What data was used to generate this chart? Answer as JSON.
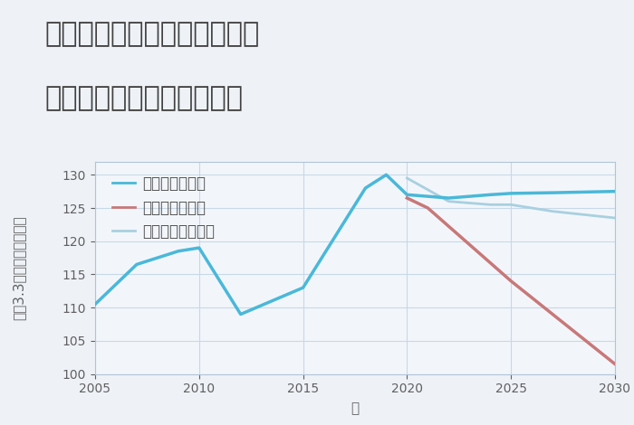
{
  "title_line1": "埼玉県さいたま市緑区北原の",
  "title_line2": "中古マンションの価格推移",
  "xlabel": "年",
  "ylabel": "坪（3.3㎡）単価（万円）",
  "ylim": [
    100,
    132
  ],
  "yticks": [
    100,
    105,
    110,
    115,
    120,
    125,
    130
  ],
  "xlim": [
    2005,
    2030
  ],
  "xticks": [
    2005,
    2010,
    2015,
    2020,
    2025,
    2030
  ],
  "background_color": "#eef2f7",
  "plot_bg_color": "#f2f6fb",
  "grid_color": "#c8d8e8",
  "good_scenario": {
    "label": "グッドシナリオ",
    "color": "#4ab8d8",
    "x": [
      2005,
      2007,
      2009,
      2010,
      2012,
      2015,
      2018,
      2019,
      2020,
      2022,
      2024,
      2025,
      2027,
      2030
    ],
    "y": [
      110.5,
      116.5,
      118.5,
      119.0,
      109.0,
      113.0,
      128.0,
      130.0,
      127.0,
      126.5,
      127.0,
      127.2,
      127.3,
      127.5
    ]
  },
  "bad_scenario": {
    "label": "バッドシナリオ",
    "color": "#c87878",
    "x": [
      2020,
      2021,
      2025,
      2030
    ],
    "y": [
      126.5,
      125.0,
      114.0,
      101.5
    ]
  },
  "normal_scenario": {
    "label": "ノーマルシナリオ",
    "color": "#a8d0e0",
    "x": [
      2020,
      2022,
      2024,
      2025,
      2027,
      2030
    ],
    "y": [
      129.5,
      126.0,
      125.5,
      125.5,
      124.5,
      123.5
    ]
  },
  "title_fontsize": 22,
  "legend_fontsize": 12,
  "axis_fontsize": 11,
  "tick_fontsize": 10
}
